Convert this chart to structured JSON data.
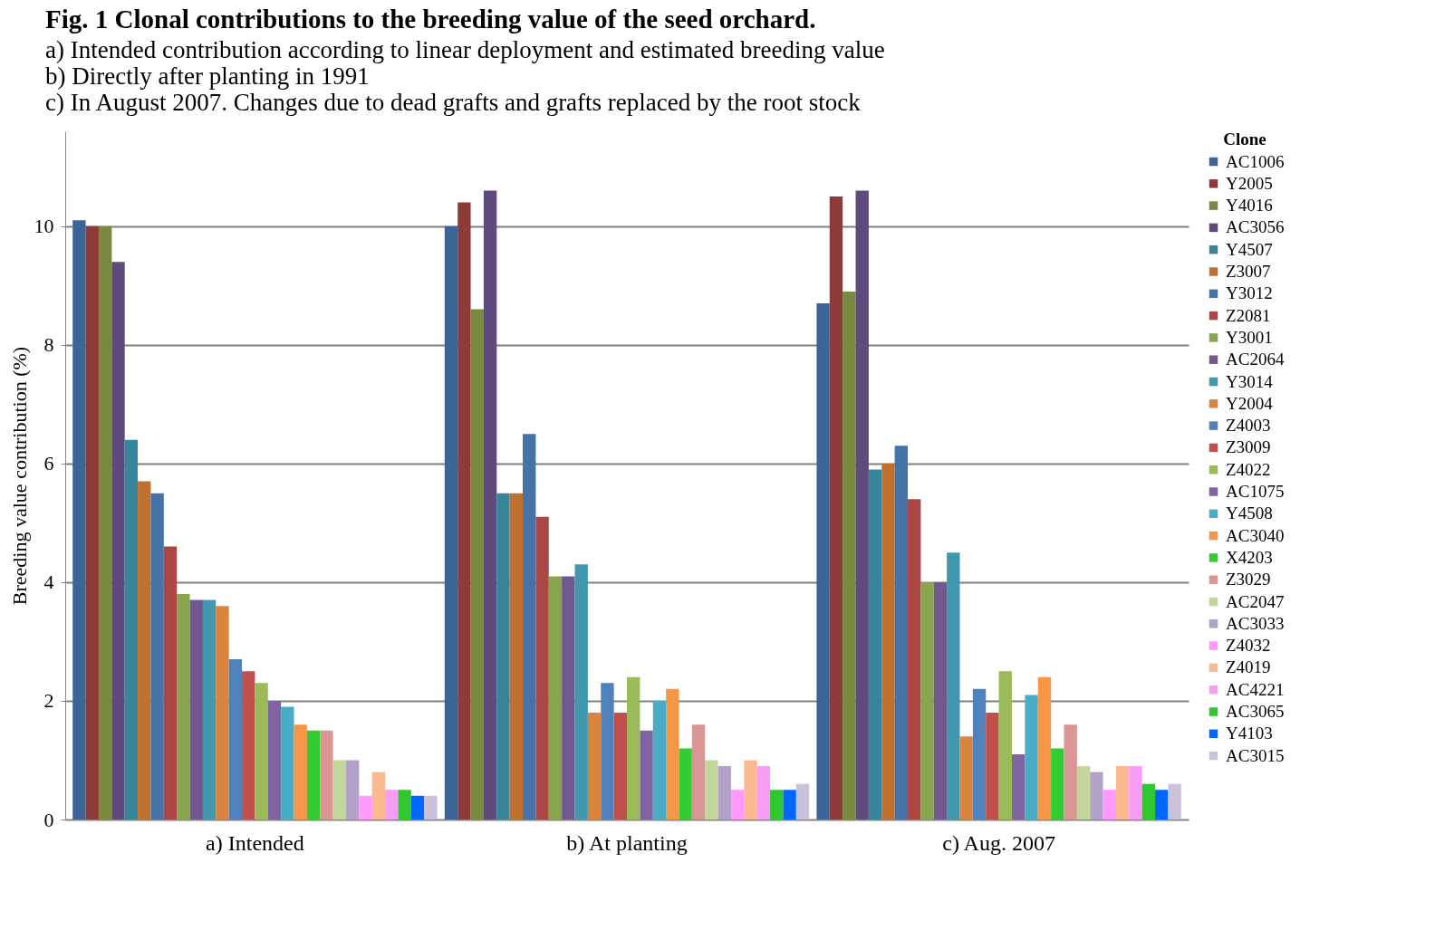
{
  "chart_data": {
    "type": "bar",
    "title": "Fig. 1   Clonal contributions to the breeding value of the seed orchard.",
    "subtitle": [
      "a) Intended contribution according to linear deployment and estimated breeding value",
      "b) Directly after planting in 1991",
      "c) In August 2007. Changes due to dead grafts and grafts replaced by the root stock"
    ],
    "ylabel": "Breeding value contribution (%)",
    "legend_title": "Clone",
    "categories": [
      "a) Intended",
      "b) At planting",
      "c) Aug. 2007"
    ],
    "ylim": [
      0,
      11.6
    ],
    "yticks": [
      0,
      2,
      4,
      6,
      8,
      10
    ],
    "grid": "y",
    "legend": "right",
    "series": [
      {
        "name": "AC1006",
        "color": "#3c6496",
        "values": [
          10.1,
          10.0,
          8.7
        ]
      },
      {
        "name": "Y2005",
        "color": "#8e3a38",
        "values": [
          10.0,
          10.4,
          10.5
        ]
      },
      {
        "name": "Y4016",
        "color": "#778a3f",
        "values": [
          10.0,
          8.6,
          8.9
        ]
      },
      {
        "name": "AC3056",
        "color": "#5e4a7c",
        "values": [
          9.4,
          10.6,
          10.6
        ]
      },
      {
        "name": "Y4507",
        "color": "#36859a",
        "values": [
          6.4,
          5.5,
          5.9
        ]
      },
      {
        "name": "Z3007",
        "color": "#c0702f",
        "values": [
          5.7,
          5.5,
          6.0
        ]
      },
      {
        "name": "Y3012",
        "color": "#4572a7",
        "values": [
          5.5,
          6.5,
          6.3
        ]
      },
      {
        "name": "Z2081",
        "color": "#aa4643",
        "values": [
          4.6,
          5.1,
          5.4
        ]
      },
      {
        "name": "Y3001",
        "color": "#89a54e",
        "values": [
          3.8,
          4.1,
          4.0
        ]
      },
      {
        "name": "AC2064",
        "color": "#71588f",
        "values": [
          3.7,
          4.1,
          4.0
        ]
      },
      {
        "name": "Y3014",
        "color": "#4198af",
        "values": [
          3.7,
          4.3,
          4.5
        ]
      },
      {
        "name": "Y2004",
        "color": "#db843d",
        "values": [
          3.6,
          1.8,
          1.4
        ]
      },
      {
        "name": "Z4003",
        "color": "#4f81bd",
        "values": [
          2.7,
          2.3,
          2.2
        ]
      },
      {
        "name": "Z3009",
        "color": "#c0504d",
        "values": [
          2.5,
          1.8,
          1.8
        ]
      },
      {
        "name": "Z4022",
        "color": "#9bbb59",
        "values": [
          2.3,
          2.4,
          2.5
        ]
      },
      {
        "name": "AC1075",
        "color": "#8064a2",
        "values": [
          2.0,
          1.5,
          1.1
        ]
      },
      {
        "name": "Y4508",
        "color": "#4bacc6",
        "values": [
          1.9,
          2.0,
          2.1
        ]
      },
      {
        "name": "AC3040",
        "color": "#f79646",
        "values": [
          1.6,
          2.2,
          2.4
        ]
      },
      {
        "name": "X4203",
        "color": "#33cc33",
        "values": [
          1.5,
          1.2,
          1.2
        ]
      },
      {
        "name": "Z3029",
        "color": "#d99694",
        "values": [
          1.5,
          1.6,
          1.6
        ]
      },
      {
        "name": "AC2047",
        "color": "#c3d69b",
        "values": [
          1.0,
          1.0,
          0.9
        ]
      },
      {
        "name": "AC3033",
        "color": "#b2a2c7",
        "values": [
          1.0,
          0.9,
          0.8
        ]
      },
      {
        "name": "Z4032",
        "color": "#ff99ff",
        "values": [
          0.4,
          0.5,
          0.5
        ]
      },
      {
        "name": "Z4019",
        "color": "#fab98f",
        "values": [
          0.8,
          1.0,
          0.9
        ]
      },
      {
        "name": "AC4221",
        "color": "#f79cf7",
        "values": [
          0.5,
          0.9,
          0.9
        ]
      },
      {
        "name": "AC3065",
        "color": "#2ec82e",
        "values": [
          0.5,
          0.5,
          0.6
        ]
      },
      {
        "name": "Y4103",
        "color": "#0066ff",
        "values": [
          0.4,
          0.5,
          0.5
        ]
      },
      {
        "name": "AC3015",
        "color": "#ccc1da",
        "values": [
          0.4,
          0.6,
          0.6
        ]
      }
    ]
  }
}
